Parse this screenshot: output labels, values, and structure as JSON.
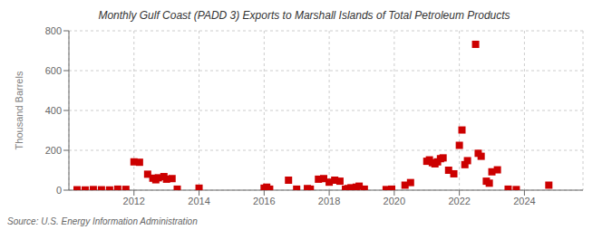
{
  "chart_data": {
    "type": "scatter",
    "title": "Monthly Gulf Coast (PADD 3) Exports to Marshall Islands of Total Petroleum Products",
    "y_label": "Thousand Barrels",
    "annotation": "Source: U.S. Energy Information Administration",
    "color": "#cc0000",
    "marker": "square",
    "grid": true,
    "xlim": [
      2010.0,
      2025.8
    ],
    "xticks": [
      2012,
      2014,
      2016,
      2018,
      2020,
      2022,
      2024
    ],
    "ylim": [
      0,
      800
    ],
    "yticks": [
      0,
      200,
      400,
      600,
      800
    ],
    "x": [
      2010.25,
      2010.5,
      2010.75,
      2011.0,
      2011.25,
      2011.5,
      2011.75,
      2012.0,
      2012.17,
      2012.42,
      2012.58,
      2012.67,
      2012.75,
      2012.92,
      2013.0,
      2013.17,
      2013.33,
      2014.0,
      2016.0,
      2016.08,
      2016.17,
      2016.75,
      2017.0,
      2017.33,
      2017.42,
      2017.67,
      2017.83,
      2018.0,
      2018.17,
      2018.33,
      2018.5,
      2018.58,
      2018.67,
      2018.83,
      2018.92,
      2019.08,
      2019.75,
      2019.92,
      2020.33,
      2020.5,
      2021.0,
      2021.08,
      2021.17,
      2021.25,
      2021.33,
      2021.42,
      2021.5,
      2021.67,
      2021.83,
      2022.0,
      2022.08,
      2022.17,
      2022.25,
      2022.5,
      2022.58,
      2022.67,
      2022.83,
      2022.92,
      2023.0,
      2023.17,
      2023.5,
      2023.75,
      2024.75
    ],
    "values": [
      2,
      1,
      3,
      2,
      1,
      5,
      4,
      142,
      140,
      80,
      60,
      52,
      62,
      68,
      55,
      58,
      5,
      10,
      10,
      15,
      5,
      50,
      5,
      8,
      5,
      55,
      58,
      40,
      50,
      45,
      5,
      8,
      12,
      15,
      20,
      5,
      3,
      5,
      25,
      38,
      145,
      152,
      138,
      132,
      142,
      158,
      162,
      100,
      82,
      225,
      302,
      128,
      148,
      732,
      185,
      170,
      45,
      35,
      92,
      102,
      5,
      3,
      25
    ]
  }
}
